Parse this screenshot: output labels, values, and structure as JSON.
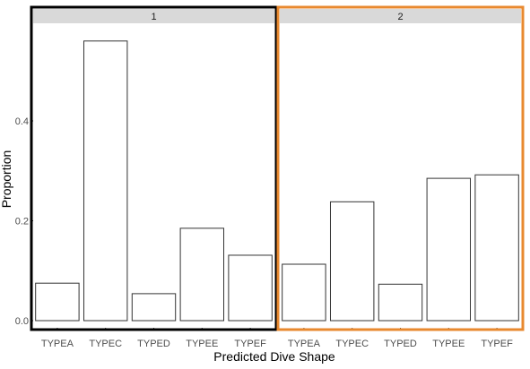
{
  "chart_data": {
    "type": "bar",
    "title": "",
    "xlabel": "Predicted Dive Shape",
    "ylabel": "Proportion",
    "ylim": [
      0,
      0.565
    ],
    "yticks": [
      {
        "value": 0.0,
        "label": "0.0"
      },
      {
        "value": 0.2,
        "label": "0.2"
      },
      {
        "value": 0.4,
        "label": "0.4"
      }
    ],
    "grid": false,
    "bar_fill": "#ffffff",
    "bar_stroke": "#333333",
    "strip_fill": "#d9d9d9",
    "categories": [
      "TYPEA",
      "TYPEC",
      "TYPED",
      "TYPEE",
      "TYPEF"
    ],
    "panels": [
      {
        "label": "1",
        "highlight_color": "#000000",
        "values": [
          0.075,
          0.56,
          0.054,
          0.185,
          0.131
        ]
      },
      {
        "label": "2",
        "highlight_color": "#e8892f",
        "values": [
          0.113,
          0.238,
          0.073,
          0.285,
          0.292
        ]
      }
    ]
  }
}
